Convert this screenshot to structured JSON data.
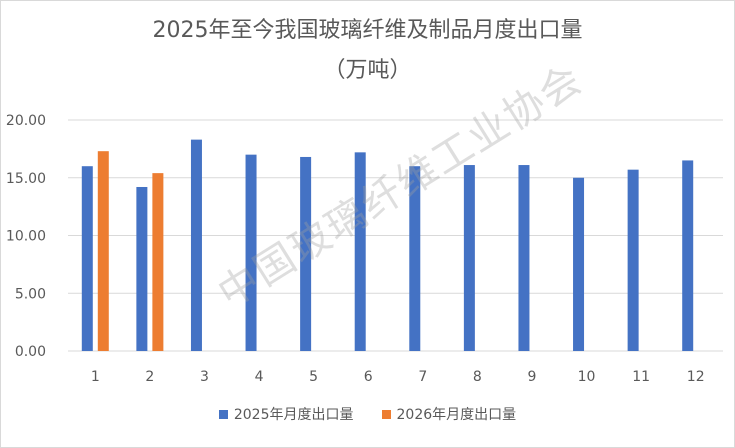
{
  "chart_data": {
    "type": "bar",
    "title": "2025年至今我国玻璃纤维及制品月度出口量",
    "subtitle": "（万吨）",
    "categories": [
      "1",
      "2",
      "3",
      "4",
      "5",
      "6",
      "7",
      "8",
      "9",
      "10",
      "11",
      "12"
    ],
    "series": [
      {
        "name": "2025年月度出口量",
        "color": "#4472C4",
        "values": [
          16.0,
          14.2,
          18.3,
          17.0,
          16.8,
          17.2,
          16.0,
          16.1,
          16.1,
          15.0,
          15.7,
          16.5
        ]
      },
      {
        "name": "2026年月度出口量",
        "color": "#ED7D31",
        "values": [
          17.3,
          15.4,
          null,
          null,
          null,
          null,
          null,
          null,
          null,
          null,
          null,
          null
        ]
      }
    ],
    "ylim": [
      0,
      20
    ],
    "yticks": [
      "0.00",
      "5.00",
      "10.00",
      "15.00",
      "20.00"
    ],
    "grid": true,
    "legend_position": "bottom"
  },
  "watermark": "中国玻璃纤维工业协会"
}
